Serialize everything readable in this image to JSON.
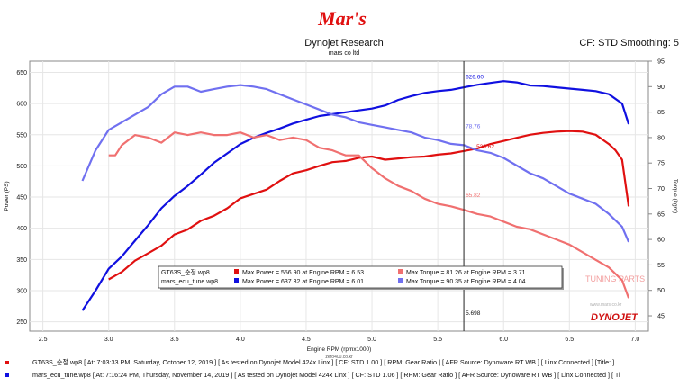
{
  "header": {
    "logo_text": "Mar's",
    "title": "Dynojet Research",
    "subtitle": "mars co ltd",
    "right": "CF: STD Smoothing: 5"
  },
  "colors": {
    "red": "#e01010",
    "pink": "#f07070",
    "blue": "#1010e0",
    "lightblue": "#7070f0",
    "gridline": "#e6e6e6"
  },
  "chart_data": {
    "type": "line",
    "xlabel": "Engine RPM (rpmx1000)",
    "ylabel": "Power (PS)",
    "ylabel_right": "Torque (kgm)",
    "xlim": [
      2.4,
      7.1
    ],
    "ylim": [
      235,
      668
    ],
    "ylim_right": [
      42,
      95
    ],
    "x_ticks": [
      "2.5",
      "3.0",
      "3.5",
      "4.0",
      "4.5",
      "5.0",
      "5.5",
      "6.0",
      "6.5",
      "7.0"
    ],
    "y_ticks": [
      "250",
      "300",
      "350",
      "400",
      "450",
      "500",
      "550",
      "600",
      "650"
    ],
    "y_ticks_right": [
      "45",
      "50",
      "55",
      "60",
      "65",
      "70",
      "75",
      "80",
      "85",
      "90",
      "95"
    ],
    "cursor": {
      "x": 5.698,
      "label": "5.698",
      "values": {
        "blue_power": "626.60",
        "red_power": "523.62",
        "blue_torque": "78.76",
        "red_torque": "65.82"
      }
    },
    "series": [
      {
        "name": "GT63S_순정.wp8",
        "color": "#e01010",
        "axis": "left",
        "measure": "Power",
        "x": [
          3.0,
          3.1,
          3.2,
          3.3,
          3.4,
          3.5,
          3.6,
          3.7,
          3.8,
          3.9,
          4.0,
          4.1,
          4.2,
          4.3,
          4.4,
          4.5,
          4.6,
          4.7,
          4.8,
          4.9,
          5.0,
          5.1,
          5.2,
          5.3,
          5.4,
          5.5,
          5.6,
          5.7,
          5.8,
          5.9,
          6.0,
          6.1,
          6.2,
          6.3,
          6.4,
          6.5,
          6.6,
          6.7,
          6.8,
          6.85,
          6.9,
          6.95
        ],
        "values": [
          318,
          330,
          348,
          360,
          372,
          390,
          398,
          412,
          420,
          432,
          448,
          455,
          462,
          476,
          488,
          493,
          500,
          506,
          508,
          513,
          515,
          510,
          512,
          514,
          515,
          518,
          520,
          524,
          528,
          535,
          540,
          545,
          550,
          553,
          555,
          556,
          555,
          550,
          535,
          525,
          510,
          435
        ]
      },
      {
        "name": "mars_ecu_tune.wp8",
        "color": "#1010e0",
        "axis": "left",
        "measure": "Power",
        "x": [
          2.8,
          2.9,
          3.0,
          3.1,
          3.2,
          3.3,
          3.4,
          3.5,
          3.6,
          3.7,
          3.8,
          3.9,
          4.0,
          4.1,
          4.2,
          4.3,
          4.4,
          4.5,
          4.6,
          4.7,
          4.8,
          4.9,
          5.0,
          5.1,
          5.2,
          5.3,
          5.4,
          5.5,
          5.6,
          5.7,
          5.8,
          5.9,
          6.0,
          6.1,
          6.2,
          6.3,
          6.4,
          6.5,
          6.6,
          6.7,
          6.8,
          6.9,
          6.95
        ],
        "values": [
          268,
          300,
          335,
          355,
          380,
          405,
          432,
          452,
          468,
          486,
          505,
          520,
          535,
          545,
          553,
          560,
          568,
          574,
          580,
          583,
          586,
          589,
          592,
          597,
          606,
          612,
          617,
          620,
          622,
          626,
          630,
          633,
          636,
          634,
          629,
          628,
          626,
          624,
          622,
          620,
          615,
          600,
          567
        ]
      },
      {
        "name": "GT63S_순정.wp8",
        "color": "#f07070",
        "axis": "right",
        "measure": "Torque",
        "x": [
          3.0,
          3.05,
          3.1,
          3.2,
          3.3,
          3.4,
          3.5,
          3.6,
          3.7,
          3.8,
          3.9,
          4.0,
          4.1,
          4.2,
          4.3,
          4.4,
          4.5,
          4.6,
          4.7,
          4.8,
          4.9,
          5.0,
          5.1,
          5.2,
          5.3,
          5.4,
          5.5,
          5.6,
          5.7,
          5.8,
          5.9,
          6.0,
          6.1,
          6.2,
          6.3,
          6.4,
          6.5,
          6.6,
          6.7,
          6.8,
          6.9,
          6.95
        ],
        "values": [
          76.5,
          76.5,
          78.5,
          80.5,
          80.0,
          79.0,
          81.0,
          80.5,
          81.0,
          80.5,
          80.5,
          81.0,
          80.0,
          80.5,
          79.5,
          80.0,
          79.5,
          78.0,
          77.5,
          76.5,
          76.5,
          74.0,
          72.0,
          70.5,
          69.5,
          68.0,
          67.0,
          66.5,
          65.8,
          65.0,
          64.5,
          63.5,
          62.5,
          62.0,
          61.0,
          60.0,
          59.0,
          57.5,
          56.0,
          54.5,
          52.0,
          48.5
        ]
      },
      {
        "name": "mars_ecu_tune.wp8",
        "color": "#7070f0",
        "axis": "right",
        "measure": "Torque",
        "x": [
          2.8,
          2.9,
          3.0,
          3.1,
          3.2,
          3.3,
          3.4,
          3.5,
          3.6,
          3.7,
          3.8,
          3.9,
          4.0,
          4.1,
          4.2,
          4.3,
          4.4,
          4.5,
          4.6,
          4.7,
          4.8,
          4.9,
          5.0,
          5.1,
          5.2,
          5.3,
          5.4,
          5.5,
          5.6,
          5.7,
          5.8,
          5.9,
          6.0,
          6.1,
          6.2,
          6.3,
          6.4,
          6.5,
          6.6,
          6.7,
          6.8,
          6.9,
          6.95
        ],
        "values": [
          71.5,
          77.5,
          81.5,
          83.0,
          84.5,
          86.0,
          88.5,
          90.0,
          90.0,
          89.0,
          89.5,
          90.0,
          90.3,
          90.0,
          89.5,
          88.5,
          87.5,
          86.5,
          85.5,
          84.5,
          84.0,
          83.0,
          82.5,
          82.0,
          81.5,
          81.0,
          80.0,
          79.5,
          78.76,
          78.5,
          77.5,
          77.0,
          76.0,
          74.5,
          73.0,
          72.0,
          70.5,
          69.0,
          68.0,
          67.0,
          65.0,
          62.5,
          59.5
        ]
      }
    ],
    "legend": {
      "rows": [
        {
          "file": "GT63S_순정.wp8",
          "power": "Max Power = 556.90 at Engine RPM = 6.53",
          "torque": "Max Torque = 81.26 at Engine RPM = 3.71",
          "power_color": "#e01010",
          "torque_color": "#f07070"
        },
        {
          "file": "mars_ecu_tune.wp8",
          "power": "Max Power = 637.32 at Engine RPM = 6.01",
          "torque": "Max Torque = 90.35 at Engine RPM = 4.04",
          "power_color": "#1010e0",
          "torque_color": "#7070f0"
        }
      ]
    },
    "watermarks": {
      "tuning": "TUNING PARTS",
      "site_top": "zero400.co.kr",
      "site_bottom": "www.mars.co.kr",
      "brand": "DYNOJET"
    }
  },
  "footer": [
    {
      "color": "#e01010",
      "text": "GT63S_순정.wp8  [ At: 7:03:33 PM, Saturday, October 12, 2019 ]  [ As tested on Dynojet Model 424x Linx ]  [ CF: STD 1.00 ]  [ RPM: Gear Ratio ]  [ AFR Source: Dynoware RT WB ]  [ Linx Connected ]  [Title: ]"
    },
    {
      "color": "#1010e0",
      "text": "mars_ecu_tune.wp8  [ At: 7:16:24 PM, Thursday, November 14, 2019 ]  [ As tested on Dynojet Model 424x Linx ]  [ CF: STD 1.06 ]  [ RPM: Gear Ratio ]  [ AFR Source: Dynoware RT WB ]  [ Linx Connected ]  [ Ti"
    }
  ]
}
